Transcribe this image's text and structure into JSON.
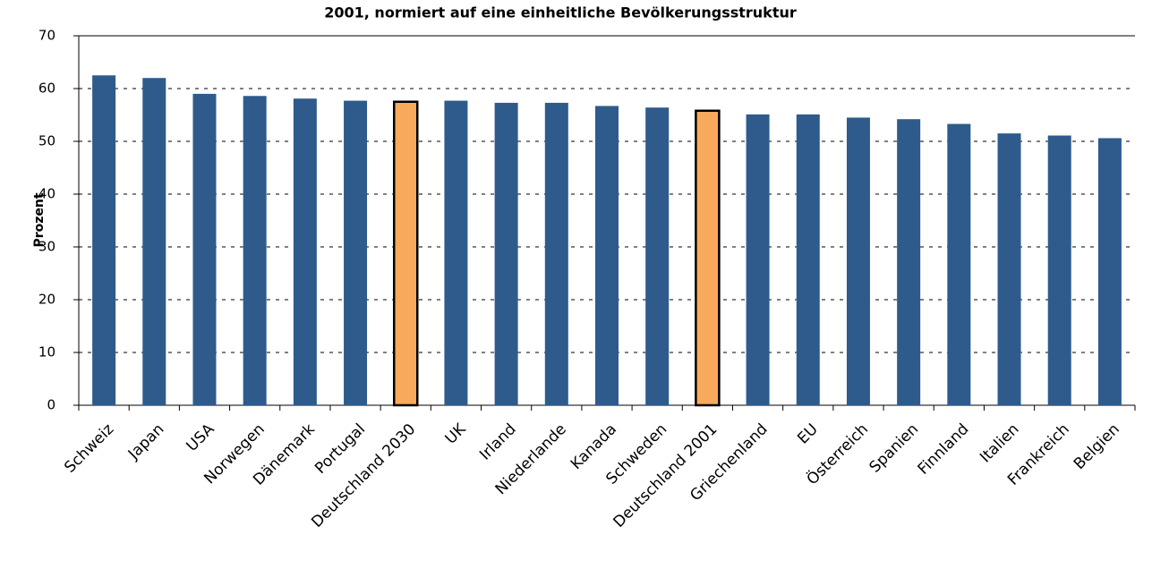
{
  "chart_data": {
    "type": "bar",
    "title": "2001, normiert auf eine einheitliche Bevölkerungsstruktur",
    "y_label": "Prozent",
    "categories": [
      "Schweiz",
      "Japan",
      "USA",
      "Norwegen",
      "Dänemark",
      "Portugal",
      "Deutschland 2030",
      "UK",
      "Irland",
      "Niederlande",
      "Kanada",
      "Schweden",
      "Deutschland 2001",
      "Griechenland",
      "EU",
      "Österreich",
      "Spanien",
      "Finnland",
      "Italien",
      "Frankreich",
      "Belgien"
    ],
    "values": [
      62.5,
      62,
      59,
      58.6,
      58.1,
      57.7,
      57.5,
      57.7,
      57.3,
      57.3,
      56.7,
      56.4,
      55.8,
      55.1,
      55.1,
      54.5,
      54.2,
      53.3,
      51.5,
      51.1,
      50.6
    ],
    "color": "#2e5b8c",
    "colors": [
      "#2e5b8c",
      "#2e5b8c",
      "#2e5b8c",
      "#2e5b8c",
      "#2e5b8c",
      "#2e5b8c",
      "#f8a95c",
      "#2e5b8c",
      "#2e5b8c",
      "#2e5b8c",
      "#2e5b8c",
      "#2e5b8c",
      "#f8a95c",
      "#2e5b8c",
      "#2e5b8c",
      "#2e5b8c",
      "#2e5b8c",
      "#2e5b8c",
      "#2e5b8c",
      "#2e5b8c",
      "#2e5b8c"
    ],
    "ylim": [
      0,
      70
    ],
    "yticks": [
      0,
      10,
      20,
      30,
      40,
      50,
      60,
      70
    ],
    "grid": true
  }
}
